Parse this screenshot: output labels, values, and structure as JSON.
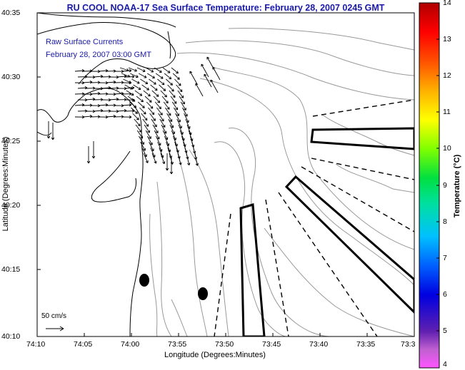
{
  "title": "RU COOL  NOAA-17  Sea Surface Temperature:  February 28, 2007 0245 GMT",
  "currents": {
    "label": "Raw Surface Currents",
    "time": "February 28, 2007 03:00 GMT"
  },
  "scale_label": "50 cm/s",
  "axes": {
    "xlabel": "Longitude (Degrees:Minutes)",
    "ylabel": "Latitude (Degrees:Minutes)",
    "xticks": [
      "74:10",
      "74:05",
      "74:00",
      "73:55",
      "73:50",
      "73:45",
      "73:40",
      "73:35",
      "73:3"
    ],
    "yticks": [
      "40:35",
      "40:30",
      "40:25",
      "40:20",
      "40:15",
      "40:10"
    ]
  },
  "colorbar": {
    "label": "Temperature (°C)",
    "ticks": [
      "14",
      "13",
      "12",
      "11",
      "10",
      "9",
      "8",
      "7",
      "6",
      "5",
      "4"
    ],
    "min": 4,
    "max": 14
  },
  "colors": {
    "title": "#1a1aa8",
    "land_outline": "#000000",
    "bathymetry": "#999999"
  }
}
